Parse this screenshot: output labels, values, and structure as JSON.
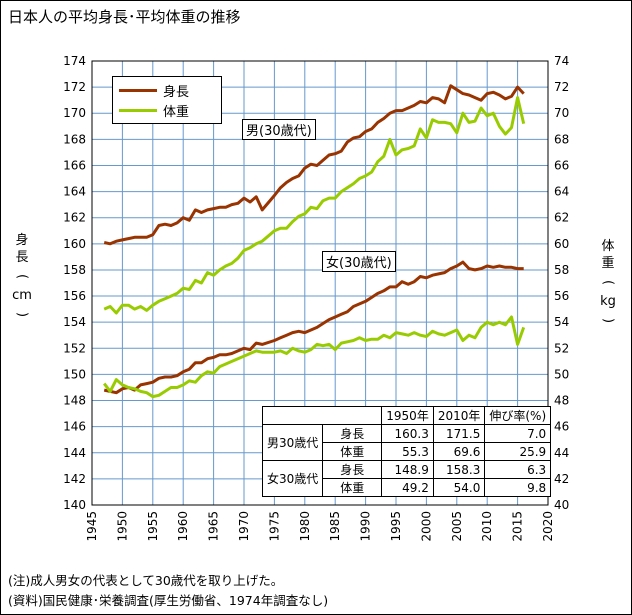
{
  "title": "日本人の平均身長･平均体重の推移",
  "notes": [
    "(注)成人男女の代表として30歳代を取り上げた。",
    "(資料)国民健康･栄養調査(厚生労働省、1974年調査なし)"
  ],
  "colors": {
    "height": "#993300",
    "weight": "#99cc00",
    "grid": "#6699cc"
  },
  "legend": {
    "height_label": "身長",
    "weight_label": "体重"
  },
  "labels": {
    "male": "男(30歳代)",
    "female": "女(30歳代)"
  },
  "axis_labels": {
    "left_chars": [
      "身",
      "長",
      "(",
      "cm",
      ")"
    ],
    "right_chars": [
      "体",
      "重",
      "(",
      "kg",
      ")"
    ]
  },
  "table": {
    "headers": [
      "1950年",
      "2010年",
      "伸び率(%)"
    ],
    "groups": [
      {
        "name": "男30歳代",
        "rows": [
          {
            "label": "身長",
            "v1950": "160.3",
            "v2010": "171.5",
            "growth": "7.0"
          },
          {
            "label": "体重",
            "v1950": "55.3",
            "v2010": "69.6",
            "growth": "25.9"
          }
        ]
      },
      {
        "name": "女30歳代",
        "rows": [
          {
            "label": "身長",
            "v1950": "148.9",
            "v2010": "158.3",
            "growth": "6.3"
          },
          {
            "label": "体重",
            "v1950": "49.2",
            "v2010": "54.0",
            "growth": "9.8"
          }
        ]
      }
    ]
  },
  "chart_data": {
    "type": "line",
    "x_range": [
      1945,
      2020
    ],
    "x_ticks": [
      1945,
      1950,
      1955,
      1960,
      1965,
      1970,
      1975,
      1980,
      1985,
      1990,
      1995,
      2000,
      2005,
      2010,
      2015,
      2020
    ],
    "y_left": {
      "range": [
        140,
        174
      ],
      "ticks": [
        140,
        142,
        144,
        146,
        148,
        150,
        152,
        154,
        156,
        158,
        160,
        162,
        164,
        166,
        168,
        170,
        172,
        174
      ]
    },
    "y_right": {
      "range": [
        40,
        74
      ],
      "ticks": [
        40,
        42,
        44,
        46,
        48,
        50,
        52,
        54,
        56,
        58,
        60,
        62,
        64,
        66,
        68,
        70,
        72,
        74
      ]
    },
    "years": [
      1947,
      1948,
      1949,
      1950,
      1951,
      1952,
      1953,
      1954,
      1955,
      1956,
      1957,
      1958,
      1959,
      1960,
      1961,
      1962,
      1963,
      1964,
      1965,
      1966,
      1967,
      1968,
      1969,
      1970,
      1971,
      1972,
      1973,
      1975,
      1976,
      1977,
      1978,
      1979,
      1980,
      1981,
      1982,
      1983,
      1984,
      1985,
      1986,
      1987,
      1988,
      1989,
      1990,
      1991,
      1992,
      1993,
      1994,
      1995,
      1996,
      1997,
      1998,
      1999,
      2000,
      2001,
      2002,
      2003,
      2004,
      2005,
      2006,
      2007,
      2008,
      2009,
      2010,
      2011,
      2012,
      2013,
      2014,
      2015,
      2016
    ],
    "series": [
      {
        "name": "男 身長",
        "axis": "left",
        "color": "#993300",
        "values": [
          160.1,
          160.0,
          160.2,
          160.3,
          160.4,
          160.5,
          160.5,
          160.5,
          160.7,
          161.4,
          161.5,
          161.4,
          161.6,
          162.0,
          161.8,
          162.6,
          162.4,
          162.6,
          162.7,
          162.8,
          162.8,
          163.0,
          163.1,
          163.5,
          163.2,
          163.6,
          162.6,
          163.7,
          164.3,
          164.7,
          165.0,
          165.2,
          165.8,
          166.1,
          166.0,
          166.4,
          166.8,
          166.9,
          167.1,
          167.8,
          168.1,
          168.2,
          168.6,
          168.8,
          169.3,
          169.6,
          170.0,
          170.2,
          170.2,
          170.4,
          170.6,
          170.9,
          170.8,
          171.2,
          171.1,
          170.8,
          172.1,
          171.8,
          171.5,
          171.4,
          171.2,
          171.0,
          171.5,
          171.6,
          171.4,
          171.1,
          171.3,
          172.0,
          171.5
        ]
      },
      {
        "name": "男 体重",
        "axis": "right",
        "color": "#99cc00",
        "values": [
          55.0,
          55.2,
          54.7,
          55.3,
          55.3,
          55.0,
          55.2,
          54.9,
          55.3,
          55.6,
          55.8,
          56.0,
          56.2,
          56.6,
          56.5,
          57.2,
          57.0,
          57.8,
          57.6,
          58.0,
          58.3,
          58.5,
          58.9,
          59.5,
          59.7,
          60.0,
          60.2,
          61.0,
          61.2,
          61.2,
          61.7,
          62.1,
          62.3,
          62.8,
          62.7,
          63.3,
          63.5,
          63.5,
          64.0,
          64.3,
          64.6,
          65.0,
          65.2,
          65.5,
          66.3,
          66.7,
          68.0,
          66.8,
          67.2,
          67.3,
          67.5,
          68.8,
          68.1,
          69.5,
          69.3,
          69.3,
          69.2,
          68.5,
          70.0,
          69.3,
          69.4,
          70.4,
          69.8,
          70.0,
          69.0,
          68.4,
          68.9,
          71.2,
          69.2
        ]
      },
      {
        "name": "女 身長",
        "axis": "left",
        "color": "#993300",
        "values": [
          148.8,
          148.7,
          148.6,
          148.9,
          149.0,
          148.8,
          149.2,
          149.3,
          149.4,
          149.7,
          149.8,
          149.8,
          149.9,
          150.2,
          150.4,
          150.9,
          150.9,
          151.2,
          151.3,
          151.5,
          151.5,
          151.6,
          151.8,
          152.0,
          151.9,
          152.4,
          152.3,
          152.6,
          152.8,
          153.0,
          153.2,
          153.3,
          153.2,
          153.4,
          153.6,
          153.9,
          154.2,
          154.4,
          154.6,
          154.8,
          155.2,
          155.4,
          155.6,
          155.9,
          156.2,
          156.4,
          156.7,
          156.7,
          157.1,
          156.9,
          157.1,
          157.5,
          157.4,
          157.6,
          157.7,
          157.8,
          158.1,
          158.3,
          158.6,
          158.1,
          158.0,
          158.1,
          158.3,
          158.2,
          158.3,
          158.2,
          158.2,
          158.1,
          158.1
        ]
      },
      {
        "name": "女 体重",
        "axis": "right",
        "color": "#99cc00",
        "values": [
          49.3,
          48.7,
          49.6,
          49.2,
          49.0,
          48.9,
          48.7,
          48.6,
          48.3,
          48.4,
          48.7,
          49.0,
          49.0,
          49.2,
          49.5,
          49.4,
          49.9,
          50.2,
          50.1,
          50.6,
          50.8,
          51.0,
          51.2,
          51.4,
          51.6,
          51.8,
          51.7,
          51.7,
          51.8,
          51.6,
          52.0,
          51.8,
          51.7,
          51.9,
          52.3,
          52.2,
          52.3,
          51.9,
          52.4,
          52.5,
          52.6,
          52.8,
          52.6,
          52.7,
          52.7,
          53.0,
          52.8,
          53.2,
          53.1,
          53.0,
          53.2,
          53.0,
          52.9,
          53.3,
          53.1,
          53.0,
          53.2,
          53.4,
          52.6,
          53.0,
          52.8,
          53.6,
          54.0,
          53.8,
          54.0,
          53.8,
          54.4,
          52.3,
          53.6
        ]
      }
    ]
  }
}
